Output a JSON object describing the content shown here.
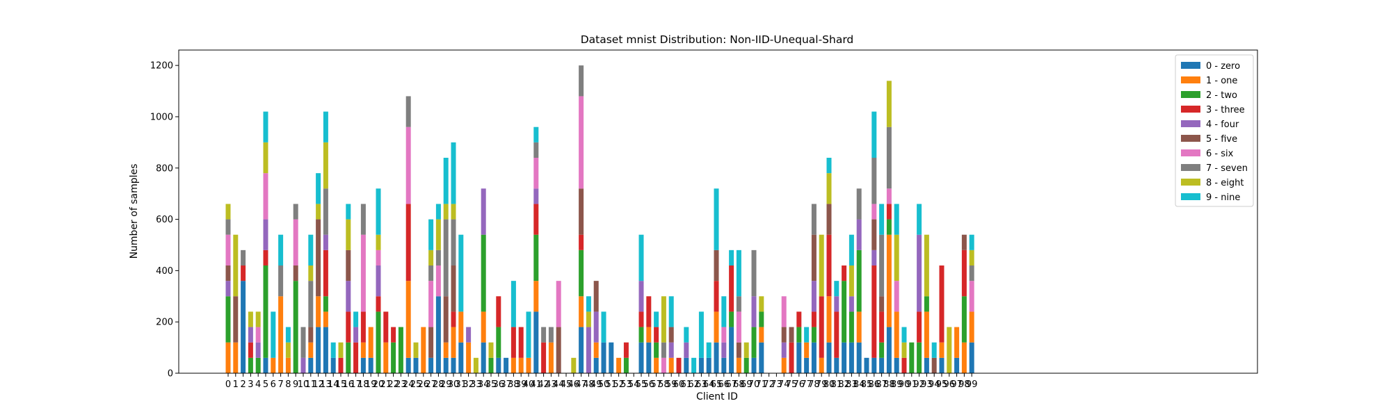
{
  "chart_data": {
    "type": "bar",
    "stacked": true,
    "title": "Dataset mnist Distribution: Non-IID-Unequal-Shard",
    "xlabel": "Client ID",
    "ylabel": "Number of samples",
    "ylim": [
      0,
      1260
    ],
    "yticks": [
      0,
      200,
      400,
      600,
      800,
      1000,
      1200
    ],
    "grid": false,
    "legend_position": "top-right",
    "categories": [
      "0",
      "1",
      "2",
      "3",
      "4",
      "5",
      "6",
      "7",
      "8",
      "9",
      "10",
      "11",
      "12",
      "13",
      "14",
      "15",
      "16",
      "17",
      "18",
      "19",
      "20",
      "21",
      "22",
      "23",
      "24",
      "25",
      "26",
      "27",
      "28",
      "29",
      "30",
      "31",
      "32",
      "33",
      "34",
      "35",
      "36",
      "37",
      "38",
      "39",
      "40",
      "41",
      "42",
      "43",
      "44",
      "45",
      "46",
      "47",
      "48",
      "49",
      "50",
      "51",
      "52",
      "53",
      "54",
      "55",
      "56",
      "57",
      "58",
      "59",
      "60",
      "61",
      "62",
      "63",
      "64",
      "65",
      "66",
      "67",
      "68",
      "69",
      "70",
      "71",
      "72",
      "73",
      "74",
      "75",
      "76",
      "77",
      "78",
      "79",
      "80",
      "81",
      "82",
      "83",
      "84",
      "85",
      "86",
      "87",
      "88",
      "89",
      "90",
      "91",
      "92",
      "93",
      "94",
      "95",
      "96",
      "97",
      "98",
      "99"
    ],
    "series": [
      {
        "name": "0 - zero",
        "color": "#1f77b4",
        "values": [
          0,
          0,
          360,
          0,
          0,
          60,
          0,
          0,
          0,
          0,
          0,
          60,
          180,
          180,
          60,
          0,
          0,
          0,
          60,
          60,
          0,
          0,
          0,
          0,
          60,
          60,
          0,
          60,
          300,
          60,
          60,
          120,
          0,
          0,
          120,
          0,
          60,
          60,
          0,
          0,
          0,
          240,
          0,
          0,
          0,
          0,
          0,
          180,
          0,
          60,
          120,
          120,
          0,
          0,
          0,
          120,
          120,
          0,
          0,
          0,
          0,
          60,
          0,
          60,
          60,
          120,
          60,
          180,
          0,
          0,
          60,
          120,
          0,
          0,
          0,
          0,
          120,
          60,
          120,
          0,
          120,
          60,
          120,
          120,
          120,
          60,
          60,
          60,
          180,
          60,
          0,
          0,
          0,
          60,
          0,
          60,
          0,
          60,
          0,
          120
        ]
      },
      {
        "name": "1 - one",
        "color": "#ff7f0e",
        "values": [
          120,
          120,
          0,
          0,
          0,
          0,
          60,
          300,
          60,
          0,
          0,
          60,
          120,
          60,
          0,
          0,
          0,
          0,
          60,
          120,
          0,
          120,
          0,
          0,
          300,
          0,
          180,
          0,
          0,
          60,
          120,
          120,
          120,
          0,
          120,
          0,
          0,
          0,
          60,
          60,
          60,
          120,
          0,
          120,
          0,
          0,
          0,
          120,
          0,
          60,
          0,
          0,
          60,
          0,
          0,
          0,
          60,
          60,
          0,
          60,
          0,
          0,
          0,
          0,
          0,
          120,
          0,
          0,
          60,
          0,
          0,
          60,
          0,
          0,
          60,
          0,
          0,
          60,
          0,
          60,
          180,
          0,
          0,
          0,
          120,
          0,
          0,
          0,
          360,
          180,
          0,
          0,
          0,
          180,
          0,
          60,
          0,
          120,
          120,
          120
        ]
      },
      {
        "name": "2 - two",
        "color": "#2ca02c",
        "values": [
          180,
          0,
          0,
          60,
          60,
          360,
          0,
          0,
          0,
          360,
          0,
          0,
          0,
          60,
          0,
          0,
          120,
          0,
          0,
          0,
          240,
          0,
          120,
          180,
          0,
          0,
          0,
          0,
          0,
          0,
          0,
          0,
          0,
          0,
          300,
          60,
          120,
          0,
          0,
          0,
          0,
          180,
          0,
          0,
          0,
          0,
          0,
          180,
          0,
          0,
          0,
          0,
          0,
          60,
          0,
          60,
          0,
          60,
          0,
          0,
          0,
          0,
          0,
          0,
          0,
          0,
          0,
          60,
          0,
          60,
          120,
          60,
          0,
          0,
          0,
          0,
          60,
          0,
          60,
          0,
          0,
          0,
          240,
          120,
          240,
          0,
          0,
          60,
          60,
          0,
          0,
          120,
          120,
          60,
          0,
          0,
          0,
          0,
          180,
          0
        ]
      },
      {
        "name": "3 - three",
        "color": "#d62728",
        "values": [
          0,
          0,
          60,
          60,
          0,
          60,
          0,
          0,
          0,
          0,
          0,
          0,
          0,
          180,
          0,
          60,
          120,
          120,
          120,
          0,
          60,
          120,
          60,
          0,
          300,
          0,
          0,
          0,
          0,
          0,
          60,
          0,
          0,
          0,
          0,
          0,
          120,
          0,
          120,
          120,
          0,
          120,
          120,
          0,
          0,
          0,
          0,
          60,
          0,
          0,
          0,
          0,
          0,
          60,
          0,
          60,
          120,
          60,
          0,
          0,
          60,
          0,
          0,
          0,
          0,
          120,
          0,
          180,
          0,
          0,
          0,
          0,
          0,
          0,
          0,
          120,
          60,
          0,
          60,
          240,
          240,
          180,
          60,
          0,
          0,
          0,
          360,
          120,
          60,
          0,
          60,
          0,
          120,
          0,
          0,
          300,
          0,
          0,
          180,
          0
        ]
      },
      {
        "name": "4 - four",
        "color": "#9467bd",
        "values": [
          60,
          0,
          0,
          60,
          60,
          120,
          0,
          0,
          0,
          0,
          60,
          0,
          0,
          60,
          0,
          0,
          120,
          60,
          0,
          0,
          120,
          0,
          0,
          0,
          0,
          0,
          0,
          0,
          0,
          0,
          0,
          0,
          60,
          0,
          180,
          0,
          0,
          0,
          0,
          0,
          0,
          60,
          0,
          0,
          0,
          0,
          0,
          0,
          180,
          120,
          0,
          0,
          0,
          0,
          0,
          120,
          0,
          0,
          0,
          60,
          0,
          60,
          0,
          0,
          0,
          0,
          60,
          0,
          0,
          0,
          120,
          0,
          0,
          0,
          60,
          0,
          0,
          0,
          120,
          0,
          0,
          60,
          0,
          60,
          120,
          0,
          60,
          0,
          0,
          0,
          0,
          0,
          300,
          0,
          0,
          0,
          0,
          0,
          0,
          0
        ]
      },
      {
        "name": "5 - five",
        "color": "#8c564b",
        "values": [
          60,
          180,
          0,
          0,
          0,
          0,
          0,
          0,
          0,
          60,
          0,
          60,
          300,
          0,
          0,
          0,
          120,
          0,
          0,
          0,
          0,
          0,
          0,
          0,
          0,
          0,
          0,
          120,
          0,
          180,
          180,
          0,
          0,
          0,
          0,
          0,
          0,
          0,
          0,
          0,
          0,
          0,
          0,
          0,
          180,
          0,
          0,
          180,
          0,
          120,
          0,
          0,
          0,
          0,
          0,
          0,
          0,
          0,
          0,
          60,
          0,
          0,
          0,
          0,
          0,
          120,
          0,
          0,
          60,
          0,
          0,
          0,
          0,
          0,
          60,
          60,
          0,
          0,
          180,
          0,
          120,
          0,
          0,
          0,
          0,
          0,
          120,
          60,
          0,
          0,
          0,
          0,
          0,
          0,
          60,
          0,
          0,
          0,
          60,
          0
        ]
      },
      {
        "name": "6 - six",
        "color": "#e377c2",
        "values": [
          120,
          0,
          0,
          0,
          60,
          180,
          0,
          0,
          0,
          180,
          0,
          0,
          0,
          0,
          0,
          0,
          0,
          0,
          300,
          0,
          60,
          0,
          0,
          0,
          300,
          0,
          0,
          180,
          120,
          0,
          0,
          0,
          0,
          0,
          0,
          0,
          0,
          0,
          0,
          0,
          0,
          120,
          0,
          0,
          180,
          0,
          0,
          360,
          0,
          0,
          0,
          0,
          0,
          0,
          0,
          0,
          0,
          0,
          60,
          0,
          0,
          0,
          0,
          0,
          0,
          0,
          60,
          0,
          120,
          0,
          0,
          0,
          0,
          0,
          120,
          0,
          0,
          0,
          0,
          0,
          0,
          0,
          0,
          0,
          0,
          0,
          60,
          0,
          60,
          120,
          0,
          0,
          0,
          0,
          0,
          0,
          0,
          0,
          0,
          120
        ]
      },
      {
        "name": "7 - seven",
        "color": "#7f7f7f",
        "values": [
          60,
          0,
          60,
          0,
          0,
          0,
          0,
          120,
          0,
          60,
          120,
          180,
          0,
          180,
          0,
          0,
          0,
          0,
          120,
          0,
          0,
          0,
          0,
          0,
          120,
          0,
          0,
          60,
          60,
          300,
          180,
          0,
          0,
          0,
          0,
          0,
          0,
          0,
          0,
          0,
          0,
          60,
          60,
          60,
          0,
          0,
          0,
          120,
          0,
          0,
          0,
          0,
          0,
          0,
          0,
          0,
          0,
          0,
          60,
          0,
          0,
          0,
          0,
          0,
          0,
          0,
          0,
          0,
          60,
          0,
          180,
          0,
          0,
          0,
          0,
          0,
          0,
          0,
          120,
          0,
          0,
          0,
          0,
          0,
          120,
          0,
          180,
          240,
          240,
          0,
          0,
          0,
          0,
          0,
          0,
          0,
          0,
          0,
          0,
          60
        ]
      },
      {
        "name": "8 - eight",
        "color": "#bcbd22",
        "values": [
          60,
          240,
          0,
          60,
          60,
          120,
          0,
          0,
          60,
          0,
          0,
          60,
          60,
          180,
          0,
          60,
          120,
          0,
          0,
          0,
          60,
          0,
          0,
          0,
          0,
          60,
          0,
          60,
          120,
          60,
          60,
          0,
          0,
          60,
          0,
          60,
          0,
          0,
          0,
          0,
          0,
          0,
          0,
          0,
          0,
          0,
          60,
          0,
          60,
          0,
          0,
          0,
          0,
          0,
          0,
          0,
          0,
          0,
          180,
          0,
          0,
          0,
          0,
          0,
          0,
          0,
          0,
          0,
          0,
          60,
          0,
          60,
          0,
          0,
          0,
          0,
          0,
          0,
          0,
          240,
          120,
          0,
          0,
          120,
          0,
          0,
          0,
          0,
          180,
          180,
          60,
          0,
          0,
          240,
          0,
          0,
          180,
          0,
          0,
          60
        ]
      },
      {
        "name": "9 - nine",
        "color": "#17becf",
        "values": [
          0,
          0,
          0,
          0,
          0,
          120,
          180,
          120,
          60,
          0,
          0,
          120,
          120,
          120,
          60,
          0,
          60,
          60,
          0,
          0,
          180,
          0,
          0,
          0,
          0,
          0,
          0,
          120,
          60,
          180,
          240,
          300,
          0,
          0,
          0,
          0,
          0,
          0,
          180,
          0,
          180,
          60,
          0,
          0,
          0,
          0,
          0,
          0,
          60,
          0,
          120,
          0,
          0,
          0,
          0,
          180,
          0,
          60,
          0,
          120,
          0,
          60,
          60,
          180,
          60,
          240,
          120,
          60,
          180,
          0,
          0,
          0,
          0,
          0,
          0,
          0,
          0,
          60,
          0,
          0,
          60,
          60,
          0,
          120,
          0,
          0,
          180,
          120,
          0,
          120,
          60,
          0,
          120,
          0,
          60,
          0,
          0,
          0,
          0,
          60
        ]
      }
    ]
  }
}
